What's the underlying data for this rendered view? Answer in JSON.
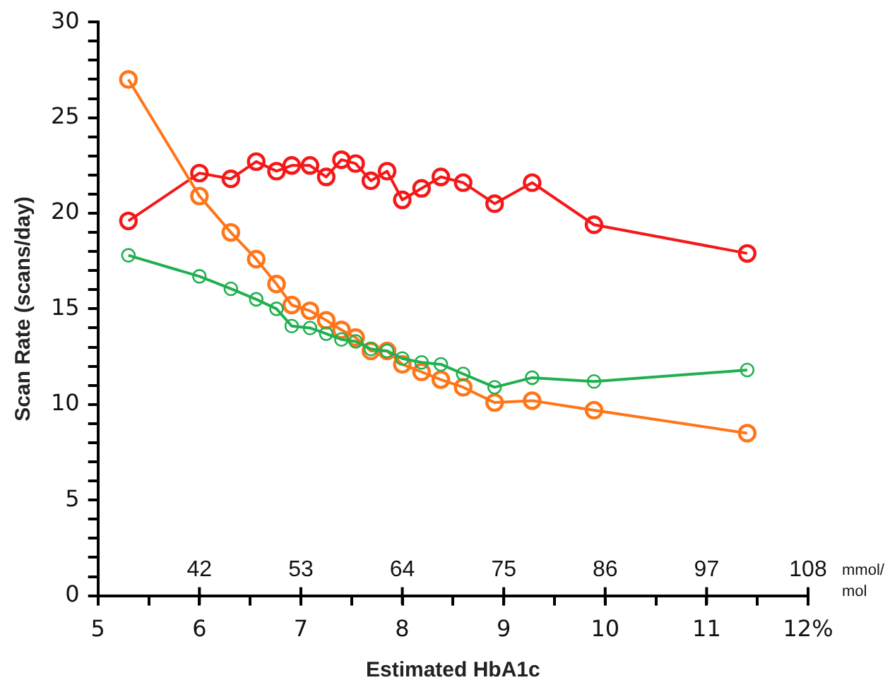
{
  "chart_data": {
    "type": "line",
    "xlabel": "Estimated HbA1c",
    "ylabel": "Scan Rate (scans/day)",
    "x2label": "mmol/mol",
    "xlim": [
      5,
      12
    ],
    "xticks": [
      5,
      {
        "value": 5.5,
        "label": null
      },
      6,
      {
        "value": 6.5,
        "label": null
      },
      7,
      {
        "value": 7.5,
        "label": null
      },
      8,
      {
        "value": 8.5,
        "label": null
      },
      9,
      {
        "value": 9.5,
        "label": null
      },
      10,
      {
        "value": 10.5,
        "label": null
      },
      11,
      {
        "value": 11.5,
        "label": null
      },
      {
        "value": 12,
        "label": "12%"
      }
    ],
    "x2lim": [
      31,
      108
    ],
    "x2ticks": [
      42,
      53,
      64,
      75,
      86,
      97,
      108
    ],
    "ylim": [
      0,
      30
    ],
    "yticks": [
      0,
      {
        "value": 1,
        "label": null
      },
      {
        "value": 2,
        "label": null
      },
      {
        "value": 3,
        "label": null
      },
      {
        "value": 4,
        "label": null
      },
      5,
      {
        "value": 6,
        "label": null
      },
      {
        "value": 7,
        "label": null
      },
      {
        "value": 8,
        "label": null
      },
      {
        "value": 9,
        "label": null
      },
      10,
      {
        "value": 11,
        "label": null
      },
      {
        "value": 12,
        "label": null
      },
      {
        "value": 13,
        "label": null
      },
      {
        "value": 14,
        "label": null
      },
      15,
      {
        "value": 16,
        "label": null
      },
      {
        "value": 17,
        "label": null
      },
      {
        "value": 18,
        "label": null
      },
      {
        "value": 19,
        "label": null
      },
      20,
      {
        "value": 21,
        "label": null
      },
      {
        "value": 22,
        "label": null
      },
      {
        "value": 23,
        "label": null
      },
      {
        "value": 24,
        "label": null
      },
      25,
      {
        "value": 26,
        "label": null
      },
      {
        "value": 27,
        "label": null
      },
      {
        "value": 28,
        "label": null
      },
      {
        "value": 29,
        "label": null
      },
      30
    ],
    "grid": false,
    "legend": false,
    "marker": "circle",
    "line_style": "solid",
    "x": [
      5.3,
      6.0,
      6.31,
      6.56,
      6.76,
      6.91,
      7.09,
      7.25,
      7.4,
      7.54,
      7.69,
      7.85,
      8.0,
      8.19,
      8.38,
      8.6,
      8.91,
      9.28,
      9.89,
      11.4
    ],
    "series": [
      {
        "color": "#f51818",
        "values": [
          19.6,
          22.1,
          21.8,
          22.7,
          22.2,
          22.5,
          22.5,
          21.9,
          22.8,
          22.6,
          21.7,
          22.2,
          20.7,
          21.3,
          21.9,
          21.6,
          20.5,
          21.6,
          19.4,
          17.9
        ]
      },
      {
        "color": "#ff7518",
        "values": [
          27.0,
          20.9,
          19.0,
          17.6,
          16.3,
          15.2,
          14.9,
          14.4,
          13.9,
          13.5,
          12.8,
          12.8,
          12.1,
          11.7,
          11.3,
          10.9,
          10.1,
          10.2,
          9.7,
          8.5
        ]
      },
      {
        "color": "#20b050",
        "values": [
          17.8,
          16.7,
          16.05,
          15.5,
          15.0,
          14.1,
          14.0,
          13.7,
          13.4,
          13.3,
          12.9,
          12.8,
          12.4,
          12.2,
          12.1,
          11.6,
          10.9,
          11.4,
          11.2,
          11.8
        ]
      }
    ]
  }
}
